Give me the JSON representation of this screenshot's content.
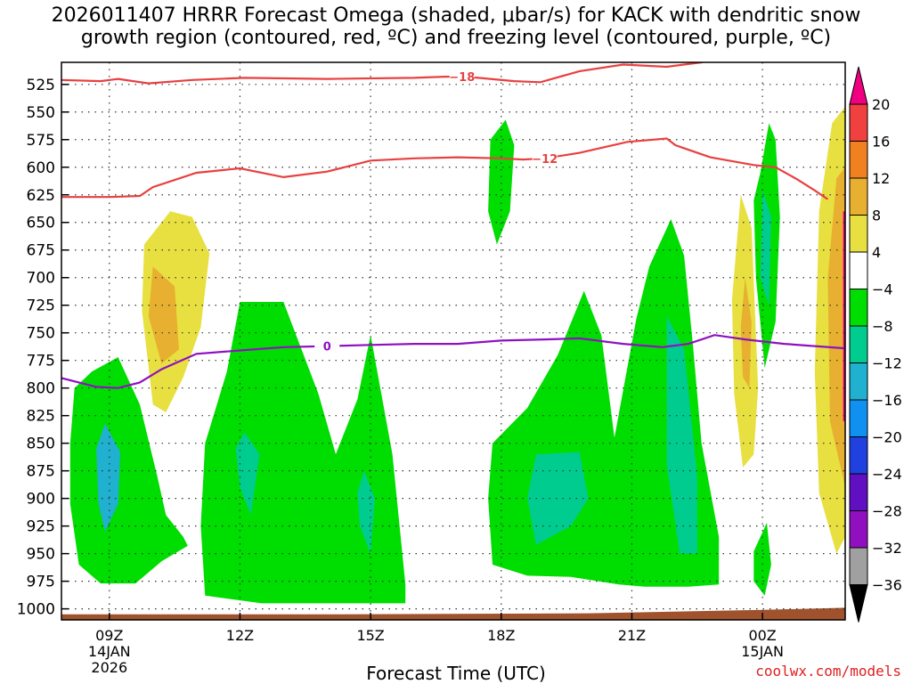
{
  "title": {
    "line1": "2026011407 HRRR Forecast Omega (shaded, μbar/s) for KACK with dendritic snow",
    "line2": "growth region (contoured, red, ºC) and freezing level (contoured, purple, ºC)"
  },
  "chart_data": {
    "type": "time-height",
    "xlabel": "Forecast Time (UTC)",
    "ylabel": "Pressure (mb)",
    "credit": "coolwx.com/models",
    "x_range_hours": [
      7.9,
      25.9
    ],
    "y_range_mb": [
      505,
      1010
    ],
    "pressure_ticks": [
      525,
      550,
      575,
      600,
      625,
      650,
      675,
      700,
      725,
      750,
      775,
      800,
      825,
      850,
      875,
      900,
      925,
      950,
      975,
      1000
    ],
    "time_ticks": [
      {
        "hour": 9,
        "label": "09Z",
        "date": "14JAN",
        "year": "2026"
      },
      {
        "hour": 12,
        "label": "12Z",
        "date": "",
        "year": ""
      },
      {
        "hour": 15,
        "label": "15Z",
        "date": "",
        "year": ""
      },
      {
        "hour": 18,
        "label": "18Z",
        "date": "",
        "year": ""
      },
      {
        "hour": 21,
        "label": "21Z",
        "date": "",
        "year": ""
      },
      {
        "hour": 24,
        "label": "00Z",
        "date": "15JAN",
        "year": ""
      }
    ],
    "colorbar": {
      "labels": [
        "20",
        "16",
        "12",
        "8",
        "4",
        "-4",
        "-8",
        "-12",
        "-16",
        "-20",
        "-24",
        "-28",
        "-32",
        "-36"
      ],
      "colors": {
        "20": "#f00080",
        "16": "#f04040",
        "12": "#f08020",
        "8": "#e8b030",
        "4": "#e8e040",
        "0": "#ffffff",
        "-4": "#00dd00",
        "-8": "#00cc90",
        "-12": "#20b0d0",
        "-16": "#1090f0",
        "-20": "#2040e0",
        "-24": "#6010c0",
        "-28": "#9010c0",
        "-32": "#a0a0a0",
        "-36": "#000000"
      }
    },
    "isotherms": [
      {
        "label": "-18",
        "color": "#e84040",
        "points": [
          [
            7.9,
            521
          ],
          [
            8.8,
            522
          ],
          [
            9.2,
            520
          ],
          [
            9.9,
            524
          ],
          [
            10.9,
            521
          ],
          [
            12.1,
            519
          ],
          [
            14,
            520
          ],
          [
            16,
            519
          ],
          [
            16.7,
            518
          ],
          [
            17.2,
            518
          ],
          [
            18.3,
            522
          ],
          [
            18.9,
            523
          ],
          [
            19.8,
            513
          ],
          [
            20.8,
            507
          ],
          [
            21.8,
            509
          ],
          [
            22.6,
            505
          ],
          [
            23,
            500
          ]
        ]
      },
      {
        "label": "-12",
        "color": "#e84040",
        "points": [
          [
            7.9,
            627
          ],
          [
            9,
            627
          ],
          [
            9.7,
            626
          ],
          [
            10,
            618
          ],
          [
            11,
            605
          ],
          [
            12,
            601
          ],
          [
            13,
            609
          ],
          [
            14,
            604
          ],
          [
            15,
            594
          ],
          [
            16,
            592
          ],
          [
            17,
            591
          ],
          [
            18,
            592
          ],
          [
            18.5,
            593
          ],
          [
            19,
            592
          ],
          [
            19.8,
            587
          ],
          [
            20.9,
            577
          ],
          [
            21.8,
            574
          ],
          [
            22,
            580
          ],
          [
            22.8,
            591
          ],
          [
            23.8,
            598
          ],
          [
            24.3,
            600
          ],
          [
            24.8,
            611
          ],
          [
            25.2,
            621
          ],
          [
            25.5,
            629
          ]
        ]
      },
      {
        "label": "0",
        "color": "#9010c0",
        "points": [
          [
            7.9,
            791
          ],
          [
            8.7,
            799
          ],
          [
            9.2,
            800
          ],
          [
            9.7,
            795
          ],
          [
            10.2,
            783
          ],
          [
            11,
            769
          ],
          [
            12,
            766
          ],
          [
            13,
            763
          ],
          [
            14,
            762
          ],
          [
            15,
            761
          ],
          [
            16,
            760
          ],
          [
            17,
            760
          ],
          [
            18,
            757
          ],
          [
            19,
            756
          ],
          [
            19.8,
            755
          ],
          [
            20.8,
            760
          ],
          [
            21.7,
            763
          ],
          [
            22.3,
            760
          ],
          [
            22.9,
            752
          ],
          [
            23.6,
            756
          ],
          [
            24.5,
            760
          ],
          [
            25.2,
            762
          ],
          [
            25.9,
            764
          ]
        ]
      }
    ],
    "omega_regions": [
      {
        "value": -4,
        "points": [
          [
            9.2,
            772
          ],
          [
            9.7,
            815
          ],
          [
            10.1,
            880
          ],
          [
            10.3,
            915
          ],
          [
            10.7,
            935
          ],
          [
            10.8,
            943
          ],
          [
            10.2,
            957
          ],
          [
            9.6,
            977
          ],
          [
            8.8,
            977
          ],
          [
            8.3,
            960
          ],
          [
            8.1,
            905
          ],
          [
            8.1,
            850
          ],
          [
            8.2,
            800
          ],
          [
            8.6,
            785
          ]
        ]
      },
      {
        "value": -12,
        "points": [
          [
            8.9,
            832
          ],
          [
            9.25,
            858
          ],
          [
            9.2,
            905
          ],
          [
            8.9,
            930
          ],
          [
            8.75,
            905
          ],
          [
            8.7,
            855
          ]
        ]
      },
      {
        "value": -4,
        "points": [
          [
            11.2,
            850
          ],
          [
            11.7,
            785
          ],
          [
            12,
            722
          ],
          [
            13,
            722
          ],
          [
            13.8,
            805
          ],
          [
            14.2,
            860
          ],
          [
            14.7,
            810
          ],
          [
            15,
            752
          ],
          [
            15.5,
            860
          ],
          [
            15.8,
            978
          ],
          [
            15.8,
            995
          ],
          [
            14,
            995
          ],
          [
            12.5,
            995
          ],
          [
            11.2,
            988
          ],
          [
            11.1,
            925
          ]
        ]
      },
      {
        "value": -8,
        "points": [
          [
            12.1,
            840
          ],
          [
            12.45,
            860
          ],
          [
            12.25,
            915
          ],
          [
            12.0,
            890
          ],
          [
            11.9,
            855
          ]
        ]
      },
      {
        "value": -8,
        "points": [
          [
            14.85,
            875
          ],
          [
            15.1,
            900
          ],
          [
            15,
            950
          ],
          [
            14.75,
            925
          ],
          [
            14.7,
            895
          ]
        ]
      },
      {
        "value": -4,
        "points": [
          [
            17.75,
            575
          ],
          [
            18.1,
            557
          ],
          [
            18.3,
            580
          ],
          [
            18.2,
            640
          ],
          [
            17.9,
            670
          ],
          [
            17.7,
            640
          ]
        ]
      },
      {
        "value": -4,
        "points": [
          [
            17.8,
            850
          ],
          [
            18.6,
            818
          ],
          [
            19.3,
            770
          ],
          [
            19.9,
            712
          ],
          [
            20.3,
            752
          ],
          [
            20.6,
            845
          ],
          [
            21.1,
            738
          ],
          [
            21.4,
            690
          ],
          [
            21.9,
            647
          ],
          [
            22.2,
            680
          ],
          [
            22.4,
            760
          ],
          [
            22.6,
            850
          ],
          [
            23,
            935
          ],
          [
            23,
            978
          ],
          [
            22.3,
            980
          ],
          [
            21.3,
            980
          ],
          [
            20.7,
            978
          ],
          [
            19.6,
            971
          ],
          [
            18.6,
            970
          ],
          [
            17.8,
            960
          ],
          [
            17.7,
            900
          ]
        ]
      },
      {
        "value": -8,
        "points": [
          [
            18.8,
            860
          ],
          [
            19.8,
            858
          ],
          [
            20,
            900
          ],
          [
            19.6,
            925
          ],
          [
            18.8,
            942
          ],
          [
            18.6,
            900
          ]
        ]
      },
      {
        "value": -8,
        "points": [
          [
            21.8,
            735
          ],
          [
            22.2,
            765
          ],
          [
            22.5,
            880
          ],
          [
            22.5,
            950
          ],
          [
            22.1,
            950
          ],
          [
            21.8,
            870
          ]
        ]
      },
      {
        "value": 4,
        "points": [
          [
            10.4,
            640
          ],
          [
            10.9,
            645
          ],
          [
            11.3,
            678
          ],
          [
            11.1,
            745
          ],
          [
            10.7,
            790
          ],
          [
            10.3,
            822
          ],
          [
            10.0,
            815
          ],
          [
            9.75,
            730
          ],
          [
            9.8,
            670
          ]
        ]
      },
      {
        "value": 8,
        "points": [
          [
            10.0,
            690
          ],
          [
            10.5,
            708
          ],
          [
            10.6,
            765
          ],
          [
            10.2,
            778
          ],
          [
            9.9,
            735
          ]
        ]
      },
      {
        "value": 4,
        "points": [
          [
            23.5,
            625
          ],
          [
            23.75,
            655
          ],
          [
            23.9,
            800
          ],
          [
            23.8,
            860
          ],
          [
            23.55,
            872
          ],
          [
            23.35,
            805
          ],
          [
            23.3,
            720
          ]
        ]
      },
      {
        "value": 8,
        "points": [
          [
            23.6,
            700
          ],
          [
            23.75,
            740
          ],
          [
            23.7,
            800
          ],
          [
            23.55,
            790
          ],
          [
            23.5,
            745
          ]
        ]
      },
      {
        "value": -4,
        "points": [
          [
            23.95,
            605
          ],
          [
            24.15,
            560
          ],
          [
            24.3,
            575
          ],
          [
            24.4,
            645
          ],
          [
            24.3,
            740
          ],
          [
            24.05,
            782
          ],
          [
            23.85,
            700
          ],
          [
            23.8,
            630
          ]
        ]
      },
      {
        "value": -8,
        "points": [
          [
            24.0,
            620
          ],
          [
            24.2,
            645
          ],
          [
            24.15,
            725
          ],
          [
            23.95,
            700
          ]
        ]
      },
      {
        "value": -4,
        "points": [
          [
            23.8,
            948
          ],
          [
            24.1,
            922
          ],
          [
            24.2,
            960
          ],
          [
            24.05,
            988
          ],
          [
            23.8,
            975
          ]
        ]
      },
      {
        "value": 4,
        "points": [
          [
            25.6,
            560
          ],
          [
            25.9,
            545
          ],
          [
            25.9,
            935
          ],
          [
            25.7,
            950
          ],
          [
            25.3,
            895
          ],
          [
            25.2,
            785
          ],
          [
            25.3,
            640
          ]
        ]
      },
      {
        "value": 8,
        "points": [
          [
            25.7,
            610
          ],
          [
            25.9,
            600
          ],
          [
            25.9,
            890
          ],
          [
            25.55,
            830
          ],
          [
            25.5,
            700
          ]
        ]
      },
      {
        "value": 20,
        "points": [
          [
            25.85,
            640
          ],
          [
            25.9,
            640
          ],
          [
            25.9,
            830
          ],
          [
            25.85,
            830
          ]
        ]
      }
    ],
    "ground": {
      "color": "#a0522d",
      "points": [
        [
          7.9,
          1005
        ],
        [
          14,
          1005
        ],
        [
          20,
          1004
        ],
        [
          24,
          1001
        ],
        [
          25.9,
          999
        ],
        [
          25.9,
          1012
        ],
        [
          7.9,
          1012
        ]
      ]
    }
  }
}
